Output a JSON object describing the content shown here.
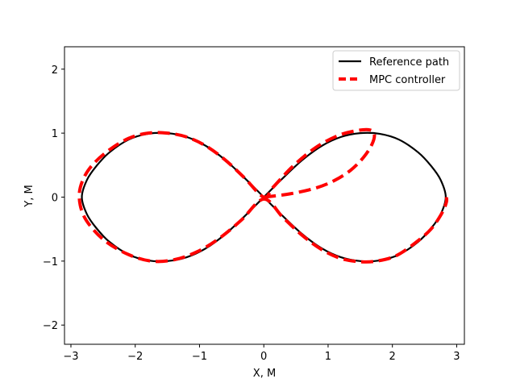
{
  "chart_data": {
    "type": "line",
    "title": "",
    "xlabel": "X, M",
    "ylabel": "Y, M",
    "xlim": [
      -3.1,
      3.12
    ],
    "ylim": [
      -2.3,
      2.35
    ],
    "xticks": [
      -3,
      -2,
      -1,
      0,
      1,
      2,
      3
    ],
    "yticks": [
      -2,
      -1,
      0,
      1,
      2
    ],
    "xtick_labels": [
      "−3",
      "−2",
      "−1",
      "0",
      "1",
      "2",
      "3"
    ],
    "ytick_labels": [
      "−2",
      "−1",
      "0",
      "1",
      "2"
    ],
    "grid": false,
    "legend_position": "top-right",
    "series": [
      {
        "name": "Reference path",
        "color": "#000000",
        "style": "solid",
        "x": [
          0,
          0.3,
          0.6,
          0.9,
          1.2,
          1.5,
          1.8,
          2.1,
          2.4,
          2.6,
          2.75,
          2.83,
          2.75,
          2.6,
          2.4,
          2.1,
          1.8,
          1.5,
          1.2,
          0.9,
          0.6,
          0.3,
          0,
          -0.3,
          -0.6,
          -0.9,
          -1.2,
          -1.5,
          -1.8,
          -2.1,
          -2.4,
          -2.6,
          -2.75,
          -2.83,
          -2.75,
          -2.6,
          -2.4,
          -2.1,
          -1.8,
          -1.5,
          -1.2,
          -0.9,
          -0.6,
          -0.3,
          0
        ],
        "y": [
          0,
          0.3,
          0.58,
          0.8,
          0.94,
          1.0,
          0.99,
          0.9,
          0.7,
          0.49,
          0.27,
          0,
          -0.27,
          -0.49,
          -0.7,
          -0.9,
          -0.99,
          -1.0,
          -0.94,
          -0.8,
          -0.58,
          -0.3,
          0,
          0.3,
          0.58,
          0.8,
          0.94,
          1.0,
          0.99,
          0.9,
          0.7,
          0.49,
          0.27,
          0,
          -0.27,
          -0.49,
          -0.7,
          -0.9,
          -0.99,
          -1.0,
          -0.94,
          -0.8,
          -0.58,
          -0.3,
          0
        ]
      },
      {
        "name": "MPC controller",
        "color": "#ff0000",
        "style": "dashed",
        "x": [
          0,
          0.4,
          0.8,
          1.1,
          1.35,
          1.55,
          1.68,
          1.72,
          1.65,
          1.45,
          1.15,
          0.8,
          0.45,
          0.15,
          0,
          -0.3,
          -0.6,
          -0.9,
          -1.2,
          -1.5,
          -1.8,
          -2.1,
          -2.4,
          -2.65,
          -2.8,
          -2.87,
          -2.83,
          -2.7,
          -2.45,
          -2.1,
          -1.75,
          -1.4,
          -1.05,
          -0.7,
          -0.35,
          0,
          0.3,
          0.6,
          0.9,
          1.2,
          1.5,
          1.75,
          2.05,
          2.35,
          2.6,
          2.77,
          2.84,
          2.84
        ],
        "y": [
          0,
          0.05,
          0.14,
          0.26,
          0.42,
          0.62,
          0.82,
          0.98,
          1.05,
          1.04,
          0.96,
          0.77,
          0.48,
          0.16,
          0,
          0.3,
          0.58,
          0.8,
          0.94,
          1.0,
          1.0,
          0.92,
          0.74,
          0.52,
          0.3,
          0.05,
          -0.22,
          -0.45,
          -0.7,
          -0.9,
          -1.0,
          -0.98,
          -0.86,
          -0.65,
          -0.36,
          -0.03,
          -0.32,
          -0.6,
          -0.82,
          -0.96,
          -1.01,
          -1.0,
          -0.92,
          -0.72,
          -0.5,
          -0.25,
          -0.08,
          0.0
        ]
      }
    ]
  }
}
